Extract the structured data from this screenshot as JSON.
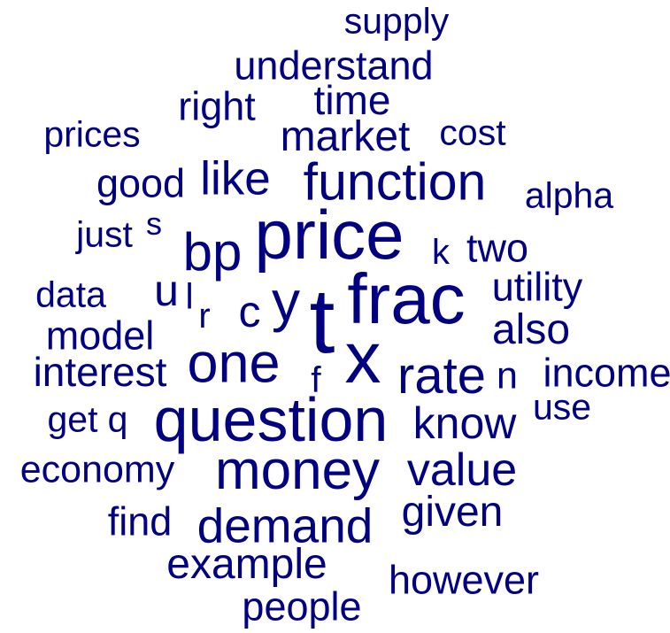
{
  "color": "#000080",
  "words": [
    {
      "text": "supply",
      "weight": 0.38
    },
    {
      "text": "understand",
      "weight": 0.42
    },
    {
      "text": "time",
      "weight": 0.44
    },
    {
      "text": "right",
      "weight": 0.42
    },
    {
      "text": "market",
      "weight": 0.45
    },
    {
      "text": "prices",
      "weight": 0.38
    },
    {
      "text": "cost",
      "weight": 0.38
    },
    {
      "text": "good",
      "weight": 0.42
    },
    {
      "text": "like",
      "weight": 0.5
    },
    {
      "text": "function",
      "weight": 0.58
    },
    {
      "text": "alpha",
      "weight": 0.38
    },
    {
      "text": "just",
      "weight": 0.38
    },
    {
      "text": "s",
      "weight": 0.34
    },
    {
      "text": "price",
      "weight": 0.75
    },
    {
      "text": "bp",
      "weight": 0.58
    },
    {
      "text": "k",
      "weight": 0.36
    },
    {
      "text": "two",
      "weight": 0.42
    },
    {
      "text": "data",
      "weight": 0.38
    },
    {
      "text": "u",
      "weight": 0.46
    },
    {
      "text": "l",
      "weight": 0.38
    },
    {
      "text": "y",
      "weight": 0.6
    },
    {
      "text": "frac",
      "weight": 0.78
    },
    {
      "text": "utility",
      "weight": 0.42
    },
    {
      "text": "r",
      "weight": 0.38
    },
    {
      "text": "c",
      "weight": 0.46
    },
    {
      "text": "t",
      "weight": 1.0
    },
    {
      "text": "model",
      "weight": 0.42
    },
    {
      "text": "also",
      "weight": 0.46
    },
    {
      "text": "x",
      "weight": 0.8
    },
    {
      "text": "interest",
      "weight": 0.44
    },
    {
      "text": "one",
      "weight": 0.6
    },
    {
      "text": "f",
      "weight": 0.38
    },
    {
      "text": "rate",
      "weight": 0.56
    },
    {
      "text": "n",
      "weight": 0.4
    },
    {
      "text": "income",
      "weight": 0.42
    },
    {
      "text": "get",
      "weight": 0.38
    },
    {
      "text": "q",
      "weight": 0.38
    },
    {
      "text": "question",
      "weight": 0.66
    },
    {
      "text": "know",
      "weight": 0.48
    },
    {
      "text": "use",
      "weight": 0.38
    },
    {
      "text": "economy",
      "weight": 0.4
    },
    {
      "text": "money",
      "weight": 0.6
    },
    {
      "text": "value",
      "weight": 0.5
    },
    {
      "text": "find",
      "weight": 0.42
    },
    {
      "text": "demand",
      "weight": 0.52
    },
    {
      "text": "given",
      "weight": 0.46
    },
    {
      "text": "example",
      "weight": 0.46
    },
    {
      "text": "however",
      "weight": 0.42
    },
    {
      "text": "people",
      "weight": 0.42
    }
  ]
}
